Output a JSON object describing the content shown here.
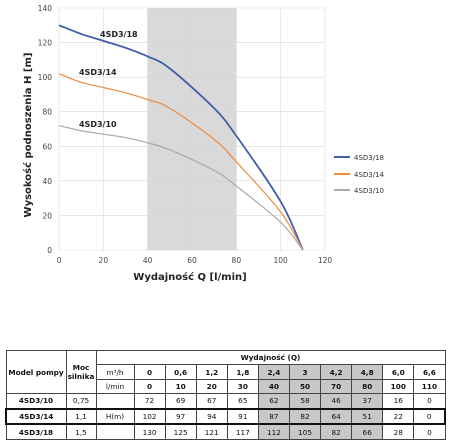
{
  "chart_data": {
    "type": "line",
    "xlabel": "Wydajność Q [l/min]",
    "ylabel": "Wysokość podnoszenia H [m]",
    "xlim": [
      0,
      120
    ],
    "ylim": [
      0,
      140
    ],
    "xticks": [
      0,
      20,
      40,
      60,
      80,
      100,
      120
    ],
    "yticks": [
      0,
      20,
      40,
      60,
      80,
      100,
      120,
      140
    ],
    "grid": true,
    "shaded_region": [
      40,
      80
    ],
    "legend_position": "right",
    "series": [
      {
        "name": "4SD3/18",
        "color": "#3f5fa8",
        "x": [
          0,
          10,
          20,
          30,
          40,
          50,
          70,
          80,
          100,
          110
        ],
        "y": [
          130,
          125,
          121,
          117,
          112,
          105,
          82,
          66,
          28,
          0
        ]
      },
      {
        "name": "4SD3/14",
        "color": "#f08a3c",
        "x": [
          0,
          10,
          20,
          30,
          40,
          50,
          70,
          80,
          100,
          110
        ],
        "y": [
          102,
          97,
          94,
          91,
          87,
          82,
          64,
          51,
          22,
          0
        ]
      },
      {
        "name": "4SD3/10",
        "color": "#a9a9a9",
        "x": [
          0,
          10,
          20,
          30,
          40,
          50,
          70,
          80,
          100,
          110
        ],
        "y": [
          72,
          69,
          67,
          65,
          62,
          58,
          46,
          37,
          16,
          0
        ]
      }
    ]
  },
  "table": {
    "col_model": "Model pompy",
    "col_power_1": "Moc",
    "col_power_2": "silnika",
    "col_flow": "Wydajność (Q)",
    "unit_m3h": "m³/h",
    "unit_lmin": "l/min",
    "unit_h": "H(m)",
    "m3h": [
      "0",
      "0,6",
      "1,2",
      "1,8",
      "2,4",
      "3",
      "4,2",
      "4,8",
      "6,0",
      "6,6"
    ],
    "lmin": [
      "0",
      "10",
      "20",
      "30",
      "40",
      "50",
      "70",
      "80",
      "100",
      "110"
    ],
    "rows": [
      {
        "model": "4SD3/10",
        "power": "0,75",
        "values": [
          "72",
          "69",
          "67",
          "65",
          "62",
          "58",
          "46",
          "37",
          "16",
          "0"
        ]
      },
      {
        "model": "4SD3/14",
        "power": "1,1",
        "values": [
          "102",
          "97",
          "94",
          "91",
          "87",
          "82",
          "64",
          "51",
          "22",
          "0"
        ]
      },
      {
        "model": "4SD3/18",
        "power": "1,5",
        "values": [
          "130",
          "125",
          "121",
          "117",
          "112",
          "105",
          "82",
          "66",
          "28",
          "0"
        ]
      }
    ]
  }
}
